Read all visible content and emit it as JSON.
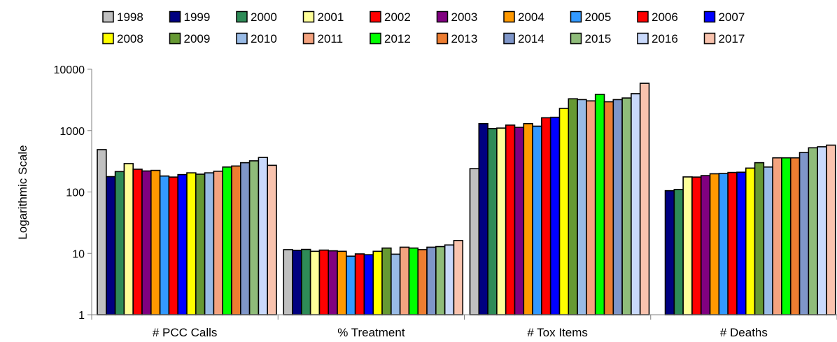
{
  "chart_data": {
    "type": "bar",
    "title": "",
    "xlabel": "",
    "ylabel": "Logarithmic Scale",
    "yscale": "log",
    "ylim": [
      1,
      10000
    ],
    "yticks": [
      "1",
      "10",
      "100",
      "1000",
      "10000"
    ],
    "grid": false,
    "legend_position": "top",
    "categories": [
      "# PCC Calls",
      "% Treatment",
      "# Tox Items",
      "# Deaths"
    ],
    "series": [
      {
        "name": "1998",
        "color": "#c0c0c0",
        "values": [
          490,
          11.5,
          240,
          1
        ]
      },
      {
        "name": "1999",
        "color": "#000080",
        "values": [
          178,
          11.2,
          1300,
          105
        ]
      },
      {
        "name": "2000",
        "color": "#2e8b57",
        "values": [
          215,
          11.6,
          1080,
          110
        ]
      },
      {
        "name": "2001",
        "color": "#ffff99",
        "values": [
          290,
          10.8,
          1100,
          176
        ]
      },
      {
        "name": "2002",
        "color": "#ff0000",
        "values": [
          235,
          11.3,
          1230,
          175
        ]
      },
      {
        "name": "2003",
        "color": "#800080",
        "values": [
          220,
          11.0,
          1130,
          185
        ]
      },
      {
        "name": "2004",
        "color": "#ff9900",
        "values": [
          225,
          10.8,
          1300,
          198
        ]
      },
      {
        "name": "2005",
        "color": "#3399ff",
        "values": [
          182,
          9.0,
          1180,
          200
        ]
      },
      {
        "name": "2006",
        "color": "#ff0000",
        "values": [
          175,
          9.8,
          1620,
          208
        ]
      },
      {
        "name": "2007",
        "color": "#0000ff",
        "values": [
          192,
          9.5,
          1650,
          210
        ]
      },
      {
        "name": "2008",
        "color": "#ffff00",
        "values": [
          205,
          10.8,
          2300,
          245
        ]
      },
      {
        "name": "2009",
        "color": "#669933",
        "values": [
          195,
          12.2,
          3300,
          300
        ]
      },
      {
        "name": "2010",
        "color": "#99bbe6",
        "values": [
          205,
          9.7,
          3200,
          255
        ]
      },
      {
        "name": "2011",
        "color": "#f4a37f",
        "values": [
          218,
          12.6,
          3050,
          360
        ]
      },
      {
        "name": "2012",
        "color": "#00ff00",
        "values": [
          255,
          12.2,
          3900,
          360
        ]
      },
      {
        "name": "2013",
        "color": "#ed7d31",
        "values": [
          265,
          11.5,
          2950,
          360
        ]
      },
      {
        "name": "2014",
        "color": "#7f96c9",
        "values": [
          300,
          12.6,
          3200,
          440
        ]
      },
      {
        "name": "2015",
        "color": "#8fbc7a",
        "values": [
          322,
          12.9,
          3400,
          525
        ]
      },
      {
        "name": "2016",
        "color": "#c9d9fb",
        "values": [
          365,
          13.7,
          4000,
          545
        ]
      },
      {
        "name": "2017",
        "color": "#f9c3ae",
        "values": [
          272,
          16.2,
          5900,
          580
        ]
      }
    ]
  }
}
